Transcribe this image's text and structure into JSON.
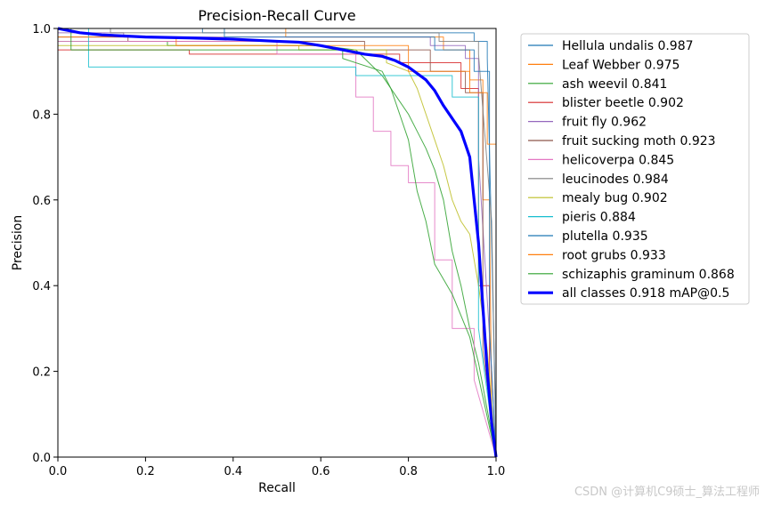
{
  "chart_data": {
    "type": "line",
    "title": "Precision-Recall Curve",
    "xlabel": "Recall",
    "ylabel": "Precision",
    "xlim": [
      0,
      1
    ],
    "ylim": [
      0,
      1
    ],
    "xticks": [
      "0.0",
      "0.2",
      "0.4",
      "0.6",
      "0.8",
      "1.0"
    ],
    "yticks": [
      "0.0",
      "0.2",
      "0.4",
      "0.6",
      "0.8",
      "1.0"
    ],
    "legend_position": "outside-right",
    "series": [
      {
        "name": "Hellula undalis 0.987",
        "color": "#1f77b4",
        "x": [
          0,
          0.33,
          0.33,
          0.95,
          0.95,
          0.98,
          0.98,
          0.99,
          1.0,
          1.0
        ],
        "y": [
          1.0,
          1.0,
          0.99,
          0.99,
          0.97,
          0.97,
          0.93,
          0.5,
          0.05,
          0.0
        ]
      },
      {
        "name": "Leaf Webber 0.975",
        "color": "#ff7f0e",
        "x": [
          0,
          0.52,
          0.52,
          0.88,
          0.88,
          0.94,
          0.94,
          0.97,
          0.97,
          0.985,
          0.99,
          1.0
        ],
        "y": [
          1.0,
          1.0,
          0.98,
          0.98,
          0.95,
          0.95,
          0.88,
          0.88,
          0.6,
          0.6,
          0.1,
          0.0
        ]
      },
      {
        "name": "ash weevil 0.841",
        "color": "#2ca02c",
        "x": [
          0,
          0.25,
          0.25,
          0.6,
          0.68,
          0.7,
          0.72,
          0.74,
          0.76,
          0.78,
          0.8,
          0.82,
          0.84,
          0.86,
          0.88,
          0.9,
          0.92,
          0.94,
          0.96,
          1.0
        ],
        "y": [
          0.97,
          0.97,
          0.96,
          0.96,
          0.95,
          0.93,
          0.91,
          0.89,
          0.86,
          0.83,
          0.8,
          0.76,
          0.72,
          0.67,
          0.6,
          0.48,
          0.4,
          0.3,
          0.22,
          0.0
        ]
      },
      {
        "name": "blister beetle 0.902",
        "color": "#d62728",
        "x": [
          0,
          0.3,
          0.3,
          0.78,
          0.78,
          0.92,
          0.92,
          0.96,
          0.96,
          0.985,
          0.985,
          1.0
        ],
        "y": [
          0.95,
          0.95,
          0.94,
          0.94,
          0.92,
          0.92,
          0.86,
          0.86,
          0.4,
          0.4,
          0.15,
          0.0
        ]
      },
      {
        "name": "fruit fly 0.962",
        "color": "#9467bd",
        "x": [
          0,
          0.15,
          0.15,
          0.85,
          0.85,
          0.93,
          0.93,
          0.96,
          0.96,
          0.99,
          1.0
        ],
        "y": [
          0.99,
          0.99,
          0.98,
          0.98,
          0.96,
          0.96,
          0.93,
          0.93,
          0.7,
          0.2,
          0.0
        ]
      },
      {
        "name": "fruit sucking moth 0.923",
        "color": "#8c564b",
        "x": [
          0,
          0.16,
          0.16,
          0.7,
          0.7,
          0.85,
          0.85,
          0.93,
          0.93,
          0.97,
          0.97,
          1.0
        ],
        "y": [
          0.98,
          0.98,
          0.97,
          0.97,
          0.95,
          0.95,
          0.9,
          0.9,
          0.85,
          0.85,
          0.25,
          0.0
        ]
      },
      {
        "name": "helicoverpa 0.845",
        "color": "#e377c2",
        "x": [
          0,
          0.5,
          0.5,
          0.68,
          0.68,
          0.72,
          0.72,
          0.76,
          0.76,
          0.8,
          0.8,
          0.86,
          0.86,
          0.9,
          0.9,
          0.95,
          0.95,
          1.0
        ],
        "y": [
          0.97,
          0.97,
          0.94,
          0.94,
          0.84,
          0.84,
          0.76,
          0.76,
          0.68,
          0.68,
          0.64,
          0.64,
          0.46,
          0.46,
          0.3,
          0.3,
          0.18,
          0.0
        ]
      },
      {
        "name": "leucinodes 0.984",
        "color": "#7f7f7f",
        "x": [
          0,
          0.12,
          0.12,
          0.87,
          0.87,
          0.96,
          0.96,
          0.99,
          1.0
        ],
        "y": [
          1.0,
          1.0,
          0.99,
          0.99,
          0.97,
          0.97,
          0.94,
          0.55,
          0.0
        ]
      },
      {
        "name": "mealy bug 0.902",
        "color": "#bcbd22",
        "x": [
          0,
          0.55,
          0.55,
          0.75,
          0.75,
          0.8,
          0.82,
          0.84,
          0.86,
          0.88,
          0.9,
          0.92,
          0.94,
          0.96,
          0.98,
          1.0
        ],
        "y": [
          0.96,
          0.96,
          0.95,
          0.95,
          0.92,
          0.9,
          0.86,
          0.8,
          0.74,
          0.68,
          0.6,
          0.55,
          0.52,
          0.4,
          0.25,
          0.0
        ]
      },
      {
        "name": "pieris 0.884",
        "color": "#17becf",
        "x": [
          0,
          0.07,
          0.07,
          0.07,
          0.68,
          0.68,
          0.9,
          0.9,
          0.96,
          0.96,
          1.0
        ],
        "y": [
          1.0,
          1.0,
          0.95,
          0.91,
          0.91,
          0.89,
          0.89,
          0.84,
          0.84,
          0.3,
          0.0
        ]
      },
      {
        "name": "plutella 0.935",
        "color": "#1f77b4",
        "x": [
          0,
          0.38,
          0.38,
          0.86,
          0.86,
          0.95,
          0.95,
          0.985,
          0.985,
          1.0
        ],
        "y": [
          1.0,
          1.0,
          0.98,
          0.98,
          0.95,
          0.95,
          0.9,
          0.9,
          0.3,
          0.0
        ]
      },
      {
        "name": "root grubs 0.933",
        "color": "#ff7f0e",
        "x": [
          0,
          0.27,
          0.27,
          0.8,
          0.8,
          0.94,
          0.94,
          0.98,
          0.98,
          1.0,
          1.0
        ],
        "y": [
          0.98,
          0.98,
          0.96,
          0.96,
          0.9,
          0.9,
          0.85,
          0.85,
          0.73,
          0.73,
          0.0
        ]
      },
      {
        "name": "schizaphis graminum 0.868",
        "color": "#2ca02c",
        "x": [
          0,
          0.03,
          0.03,
          0.65,
          0.65,
          0.74,
          0.76,
          0.78,
          0.8,
          0.82,
          0.84,
          0.86,
          0.9,
          0.94,
          1.0
        ],
        "y": [
          1.0,
          1.0,
          0.95,
          0.95,
          0.93,
          0.9,
          0.86,
          0.8,
          0.74,
          0.62,
          0.55,
          0.45,
          0.38,
          0.28,
          0.0
        ]
      },
      {
        "name": "all classes 0.918 mAP@0.5",
        "color": "#0000ff",
        "bold": true,
        "x": [
          0,
          0.05,
          0.1,
          0.2,
          0.3,
          0.4,
          0.5,
          0.55,
          0.6,
          0.65,
          0.7,
          0.74,
          0.77,
          0.8,
          0.82,
          0.84,
          0.86,
          0.88,
          0.9,
          0.92,
          0.93,
          0.94,
          0.95,
          0.96,
          0.97,
          0.98,
          0.99,
          1.0
        ],
        "y": [
          1.0,
          0.99,
          0.985,
          0.98,
          0.978,
          0.975,
          0.97,
          0.968,
          0.96,
          0.95,
          0.94,
          0.935,
          0.925,
          0.91,
          0.895,
          0.88,
          0.855,
          0.82,
          0.79,
          0.76,
          0.73,
          0.7,
          0.6,
          0.5,
          0.35,
          0.2,
          0.08,
          0.0
        ]
      }
    ]
  },
  "watermark": "CSDN @计算机C9硕士_算法工程师"
}
